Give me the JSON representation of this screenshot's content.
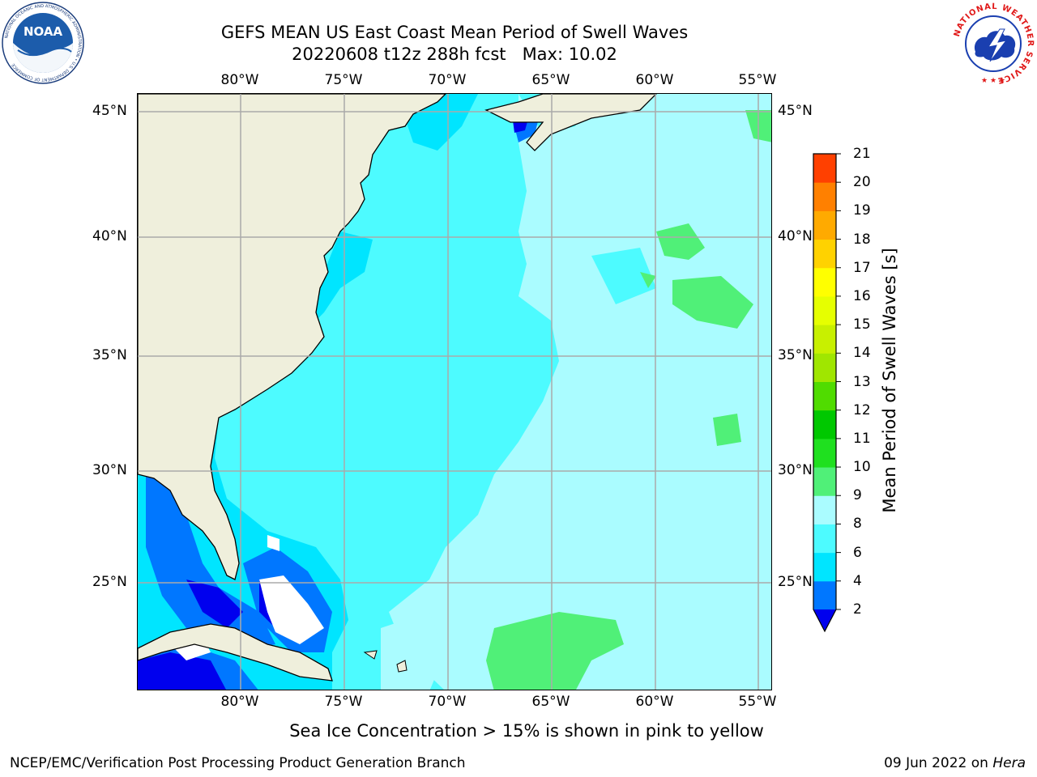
{
  "header": {
    "title_line1": "GEFS MEAN US East Coast Mean Period of Swell Waves",
    "title_line2": "20220608 t12z 288h fcst   Max: 10.02"
  },
  "logos": {
    "left": {
      "icon": "noaa-logo-icon",
      "text": "NOAA",
      "ring_text": "NATIONAL OCEANIC AND ATMOSPHERIC ADMINISTRATION • U.S. DEPARTMENT OF COMMERCE"
    },
    "right": {
      "icon": "nws-logo-icon",
      "ring_text": "NATIONAL WEATHER SERVICE"
    }
  },
  "map": {
    "lon_labels": [
      "80°W",
      "75°W",
      "70°W",
      "65°W",
      "60°W",
      "55°W"
    ],
    "lat_labels": [
      "45°N",
      "40°N",
      "35°N",
      "30°N",
      "25°N"
    ],
    "colors": {
      "land": "#efefdc",
      "gridline": "#aaaaaa",
      "coast": "#000000",
      "ice_mask": "#ffffff"
    }
  },
  "colorbar": {
    "label": "Mean Period of Swell Waves [s]",
    "ticks": [
      "2",
      "4",
      "6",
      "8",
      "9",
      "10",
      "11",
      "12",
      "13",
      "14",
      "15",
      "16",
      "17",
      "18",
      "19",
      "20",
      "21"
    ],
    "under_color": "#0000ee",
    "colors": [
      "#0077ff",
      "#00e5ff",
      "#4dfbff",
      "#aafcff",
      "#50f078",
      "#1fe01f",
      "#00c800",
      "#50dc00",
      "#a0e600",
      "#c8f000",
      "#e6ff00",
      "#ffff00",
      "#ffd200",
      "#ffaa00",
      "#ff8000",
      "#ff4000",
      "#ff0000",
      "#e60000"
    ]
  },
  "notes": {
    "ice": "Sea Ice Concentration > 15% is shown in pink to yellow",
    "footer_left": "NCEP/EMC/Verification Post Processing Product Generation Branch",
    "footer_right_date": "09 Jun 2022 on ",
    "footer_right_host": "Hera"
  }
}
